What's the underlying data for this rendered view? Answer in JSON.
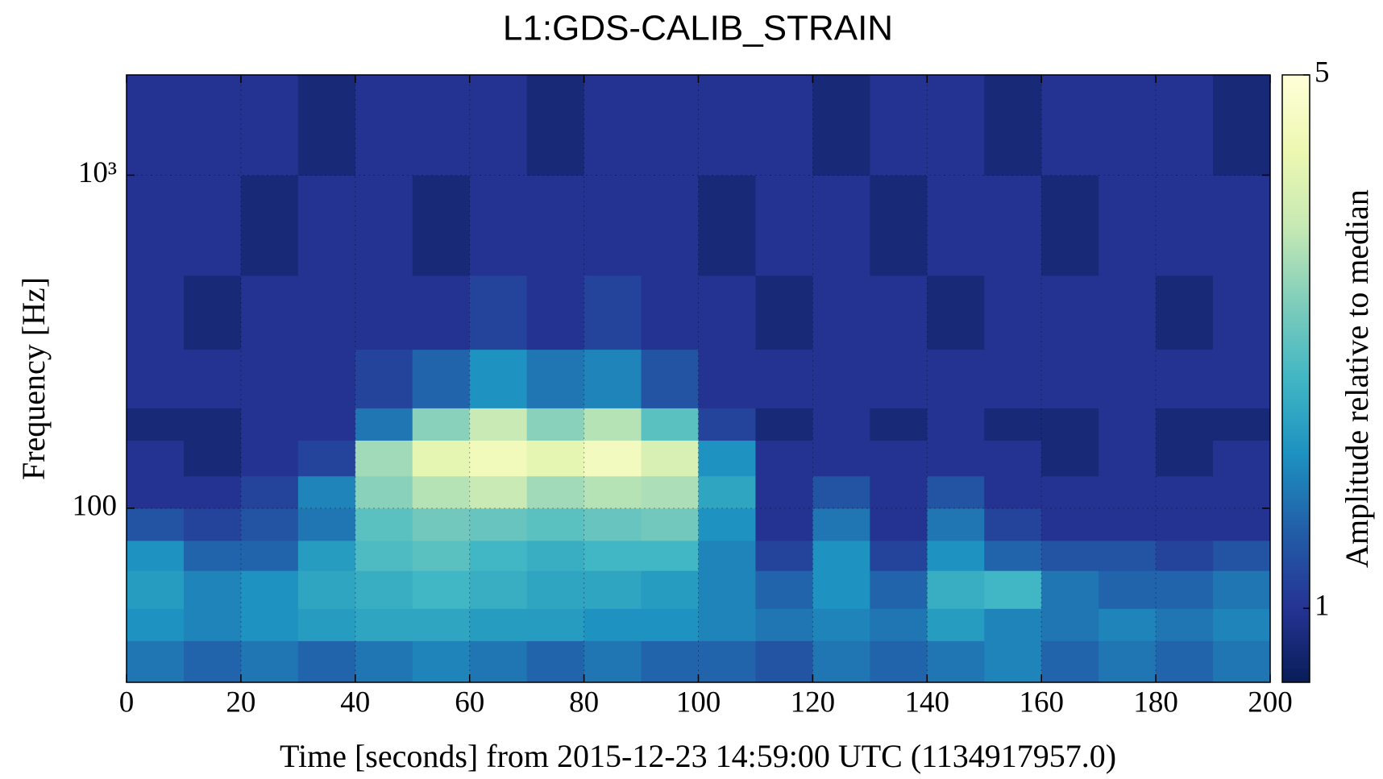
{
  "chart_data": {
    "type": "spectrogram",
    "title": "L1:GDS-CALIB_STRAIN",
    "xlabel": "Time [seconds] from 2015-12-23 14:59:00 UTC (1134917957.0)",
    "ylabel": "Frequency [Hz]",
    "colorbar_label": "Amplitude relative to median",
    "xlim": [
      0,
      200
    ],
    "xticks": [
      0,
      20,
      40,
      60,
      80,
      100,
      120,
      140,
      160,
      180,
      200
    ],
    "ylim": [
      30,
      2000
    ],
    "yscale": "log",
    "yticks": [
      100,
      {
        "value": 1000,
        "label": "10³"
      }
    ],
    "grid": true,
    "clim": [
      0.8,
      5
    ],
    "cscale": "log",
    "cticks": [
      1,
      5
    ],
    "colormap": [
      "#081d58",
      "#253494",
      "#225ea8",
      "#1d91c0",
      "#41b6c4",
      "#7fcdbb",
      "#c7e9b4",
      "#edf8b1",
      "#ffffd9"
    ],
    "x_edges": [
      0,
      10,
      20,
      30,
      40,
      50,
      60,
      70,
      80,
      90,
      100,
      110,
      120,
      130,
      140,
      150,
      160,
      170,
      180,
      190,
      200
    ],
    "y_edges": [
      30,
      40,
      50,
      65,
      80,
      100,
      125,
      160,
      200,
      300,
      500,
      1000,
      2000
    ],
    "values": [
      [
        1.4,
        1.3,
        1.4,
        1.3,
        1.4,
        1.5,
        1.4,
        1.3,
        1.4,
        1.3,
        1.3,
        1.2,
        1.4,
        1.3,
        1.4,
        1.5,
        1.3,
        1.4,
        1.3,
        1.4
      ],
      [
        1.6,
        1.5,
        1.6,
        1.7,
        1.8,
        1.8,
        1.7,
        1.7,
        1.6,
        1.6,
        1.5,
        1.4,
        1.5,
        1.4,
        1.7,
        1.5,
        1.4,
        1.5,
        1.4,
        1.5
      ],
      [
        1.7,
        1.5,
        1.6,
        1.8,
        1.9,
        2.0,
        1.9,
        1.8,
        1.8,
        1.7,
        1.5,
        1.3,
        1.6,
        1.3,
        1.9,
        2.0,
        1.4,
        1.3,
        1.3,
        1.4
      ],
      [
        1.6,
        1.3,
        1.3,
        1.7,
        2.1,
        2.2,
        2.0,
        1.9,
        2.0,
        2.0,
        1.5,
        1.1,
        1.6,
        1.1,
        1.6,
        1.3,
        1.2,
        1.2,
        1.1,
        1.2
      ],
      [
        1.2,
        1.1,
        1.2,
        1.4,
        2.2,
        2.4,
        2.3,
        2.2,
        2.3,
        2.4,
        1.6,
        1.0,
        1.4,
        1.0,
        1.4,
        1.1,
        1.0,
        1.0,
        1.0,
        1.0
      ],
      [
        1.0,
        1.0,
        1.1,
        1.5,
        2.6,
        3.0,
        3.2,
        2.8,
        3.0,
        2.9,
        1.8,
        1.0,
        1.2,
        1.0,
        1.2,
        1.0,
        1.0,
        1.0,
        1.0,
        1.0
      ],
      [
        1.0,
        0.9,
        1.0,
        1.1,
        2.8,
        3.8,
        4.2,
        3.8,
        4.3,
        3.5,
        1.6,
        1.0,
        1.0,
        1.0,
        1.0,
        1.0,
        0.9,
        1.0,
        0.9,
        1.0
      ],
      [
        0.9,
        0.9,
        1.0,
        1.0,
        1.4,
        2.6,
        3.2,
        2.6,
        3.0,
        2.2,
        1.1,
        0.9,
        1.0,
        0.9,
        1.0,
        0.9,
        0.9,
        1.0,
        0.9,
        0.9
      ],
      [
        1.0,
        1.0,
        1.0,
        1.0,
        1.1,
        1.3,
        1.6,
        1.4,
        1.5,
        1.2,
        1.0,
        1.0,
        1.0,
        1.0,
        1.0,
        1.0,
        1.0,
        1.0,
        1.0,
        1.0
      ],
      [
        1.0,
        0.9,
        1.0,
        1.0,
        1.0,
        1.0,
        1.1,
        1.0,
        1.1,
        1.0,
        1.0,
        0.9,
        1.0,
        1.0,
        0.9,
        1.0,
        1.0,
        1.0,
        0.9,
        1.0
      ],
      [
        1.0,
        1.0,
        0.9,
        1.0,
        1.0,
        0.9,
        1.0,
        1.0,
        1.0,
        1.0,
        0.9,
        1.0,
        1.0,
        0.9,
        1.0,
        1.0,
        0.9,
        1.0,
        1.0,
        1.0
      ],
      [
        1.0,
        1.0,
        1.0,
        0.9,
        1.0,
        1.0,
        1.0,
        0.9,
        1.0,
        1.0,
        1.0,
        1.0,
        0.9,
        1.0,
        1.0,
        0.9,
        1.0,
        1.0,
        1.0,
        0.9
      ]
    ]
  }
}
